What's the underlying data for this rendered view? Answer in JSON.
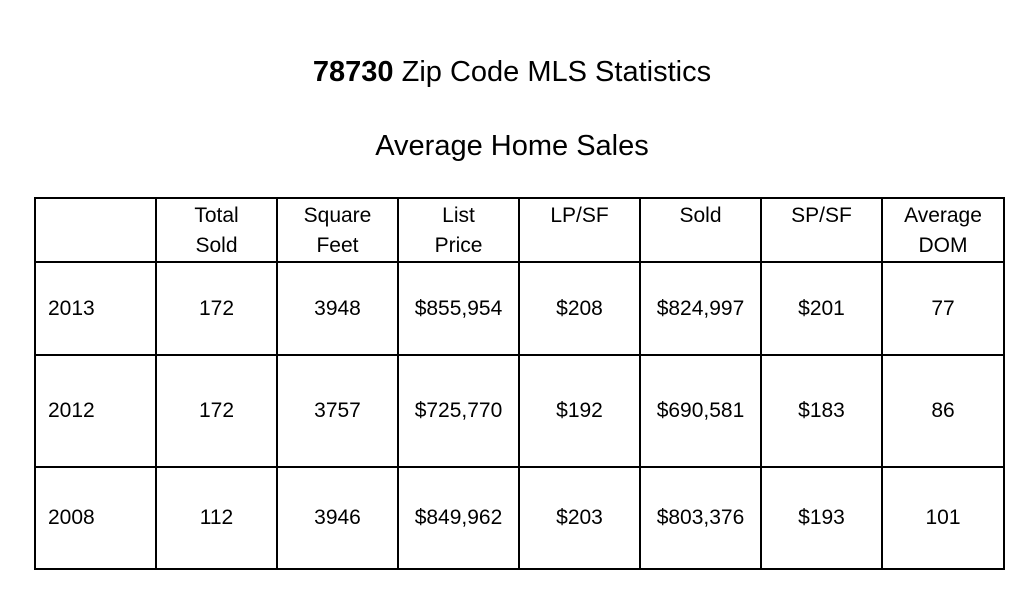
{
  "title": {
    "zip": "78730",
    "rest": " Zip Code MLS Statistics"
  },
  "subtitle": "Average Home Sales",
  "table": {
    "headers": [
      {
        "line1": "",
        "line2": ""
      },
      {
        "line1": "Total",
        "line2": "Sold"
      },
      {
        "line1": "Square",
        "line2": "Feet"
      },
      {
        "line1": "List",
        "line2": "Price"
      },
      {
        "line1": "LP/SF",
        "line2": ""
      },
      {
        "line1": "Sold",
        "line2": ""
      },
      {
        "line1": "SP/SF",
        "line2": ""
      },
      {
        "line1": "Average",
        "line2": "DOM"
      }
    ],
    "rows": [
      [
        "2013",
        "172",
        "3948",
        "$855,954",
        "$208",
        "$824,997",
        "$201",
        "77"
      ],
      [
        "2012",
        "172",
        "3757",
        "$725,770",
        "$192",
        "$690,581",
        "$183",
        "86"
      ],
      [
        "2008",
        "112",
        "3946",
        "$849,962",
        "$203",
        "$803,376",
        "$193",
        "101"
      ]
    ]
  }
}
